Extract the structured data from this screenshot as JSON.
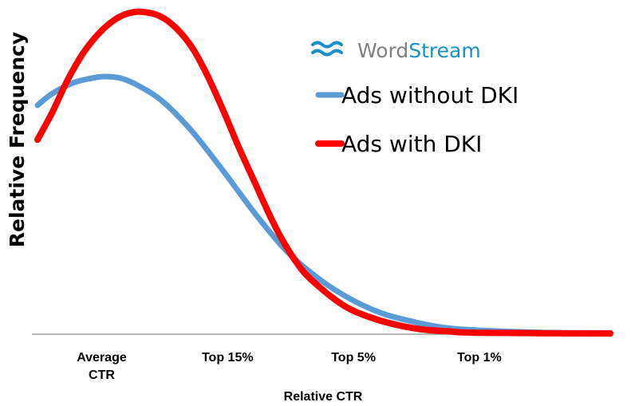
{
  "chart_data": {
    "type": "line",
    "title": "",
    "xlabel": "Relative CTR",
    "ylabel": "Relative Frequency",
    "categories": [
      {
        "x": 0,
        "label": [
          "Average",
          "CTR"
        ]
      },
      {
        "x": 1,
        "label": [
          "Top 15%"
        ]
      },
      {
        "x": 2,
        "label": [
          "Top 5%"
        ]
      },
      {
        "x": 3,
        "label": [
          "Top 1%"
        ]
      }
    ],
    "xlim": [
      -0.51,
      4.04
    ],
    "ylim": [
      0,
      101
    ],
    "grid": false,
    "legend_position": "top-right",
    "logo": {
      "part1": "Word",
      "part2": "Stream",
      "color1": "#808080",
      "color2": "#1b8fc6"
    },
    "series": [
      {
        "name": "Ads without DKI",
        "color": "#5b9bd5",
        "x": [
          -0.51,
          -0.39,
          -0.23,
          -0.08,
          0.02,
          0.15,
          0.3,
          0.49,
          0.72,
          0.97,
          1.22,
          1.47,
          1.73,
          1.98,
          2.23,
          2.49,
          2.74,
          2.99,
          3.31,
          3.63,
          4.04
        ],
        "y": [
          70.8,
          74.5,
          77.7,
          79.2,
          79.7,
          79.2,
          76.7,
          71.8,
          62.6,
          50.2,
          37.1,
          25.5,
          16.8,
          10.6,
          6.2,
          3.5,
          1.7,
          1.0,
          0.5,
          0.2,
          0
        ]
      },
      {
        "name": "Ads with DKI",
        "color": "#ff0000",
        "x": [
          -0.51,
          -0.39,
          -0.27,
          -0.14,
          -0.01,
          0.11,
          0.21,
          0.32,
          0.46,
          0.59,
          0.72,
          0.84,
          0.97,
          1.09,
          1.22,
          1.35,
          1.47,
          1.6,
          1.73,
          1.85,
          1.98,
          2.17,
          2.36,
          2.55,
          2.74,
          2.99,
          4.04
        ],
        "y": [
          60.1,
          68.8,
          78.7,
          87.4,
          93.6,
          97.5,
          99.3,
          99.8,
          98.5,
          94.8,
          88.6,
          80.0,
          68.8,
          57.7,
          46.5,
          35.4,
          26.7,
          19.3,
          14.4,
          10.6,
          7.4,
          4.5,
          2.5,
          1.2,
          0.7,
          0.2,
          0
        ]
      }
    ]
  }
}
